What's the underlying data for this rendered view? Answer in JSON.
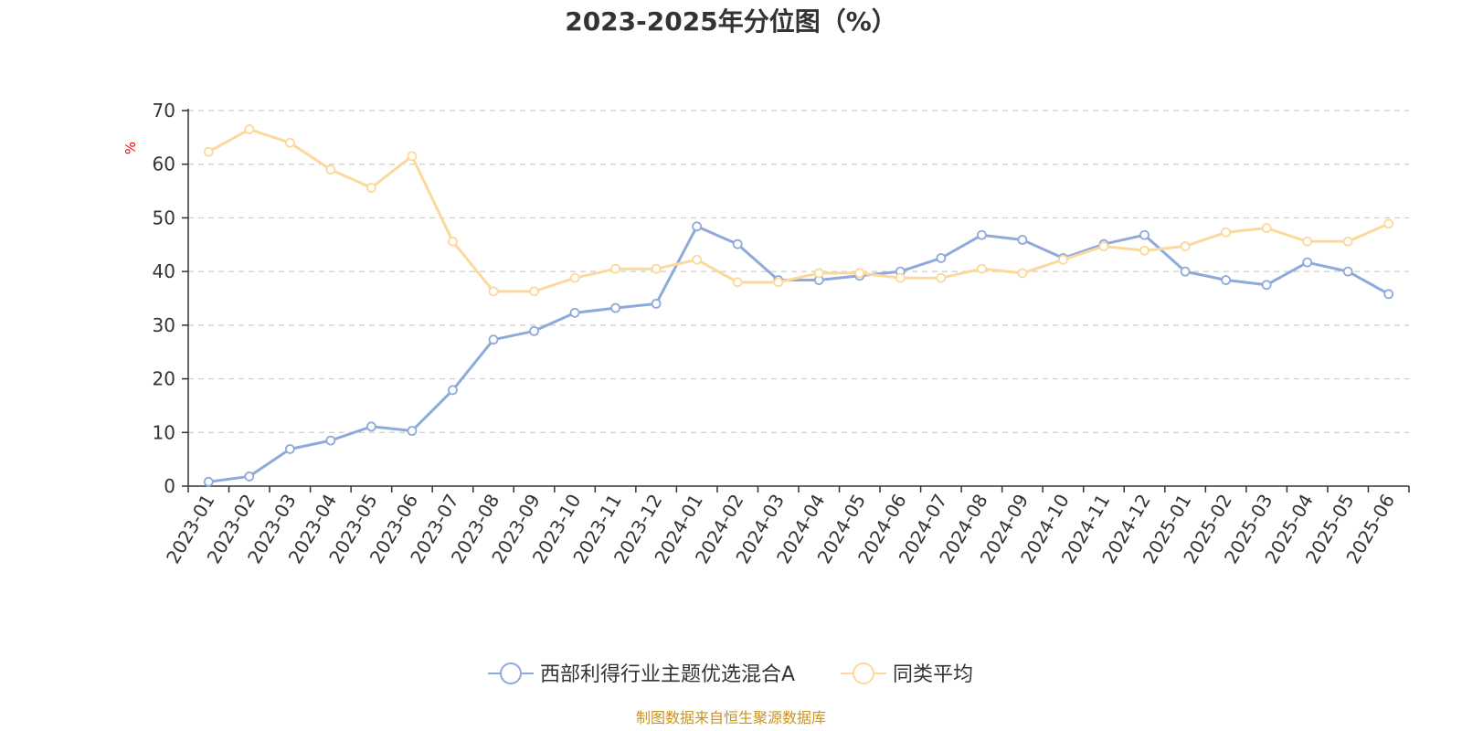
{
  "chart_data": {
    "type": "line",
    "title": "2023-2025年分位图（%）",
    "ylabel": "%",
    "xlabel": "",
    "ylim": [
      0,
      70
    ],
    "yticks": [
      0,
      10,
      20,
      30,
      40,
      50,
      60,
      70
    ],
    "grid": true,
    "legend_position": "bottom-center",
    "categories": [
      "2023-01",
      "2023-02",
      "2023-03",
      "2023-04",
      "2023-05",
      "2023-06",
      "2023-07",
      "2023-08",
      "2023-09",
      "2023-10",
      "2023-11",
      "2023-12",
      "2024-01",
      "2024-02",
      "2024-03",
      "2024-04",
      "2024-05",
      "2024-06",
      "2024-07",
      "2024-08",
      "2024-09",
      "2024-10",
      "2024-11",
      "2024-12",
      "2025-01",
      "2025-02",
      "2025-03",
      "2025-04",
      "2025-05",
      "2025-06"
    ],
    "series": [
      {
        "name": "西部利得行业主题优选混合A",
        "color": "#8eaadb",
        "values": [
          0.8,
          1.8,
          6.9,
          8.5,
          11.1,
          10.3,
          17.9,
          27.3,
          28.9,
          32.3,
          33.2,
          34.0,
          48.4,
          45.1,
          38.4,
          38.4,
          39.2,
          40.0,
          42.5,
          46.8,
          45.9,
          42.5,
          45.1,
          46.8,
          40.0,
          38.4,
          37.5,
          41.7,
          40.0,
          35.8
        ]
      },
      {
        "name": "同类平均",
        "color": "#fcd99b",
        "values": [
          62.3,
          66.5,
          64.0,
          59.0,
          55.6,
          61.5,
          45.6,
          36.3,
          36.3,
          38.8,
          40.5,
          40.5,
          42.2,
          38.0,
          38.0,
          39.7,
          39.7,
          38.8,
          38.8,
          40.5,
          39.7,
          42.2,
          44.7,
          43.9,
          44.7,
          47.3,
          48.1,
          45.6,
          45.6,
          48.9
        ]
      }
    ],
    "unit_color": "#ff0000",
    "source": "制图数据来自恒生聚源数据库",
    "source_color": "#c8941e"
  }
}
